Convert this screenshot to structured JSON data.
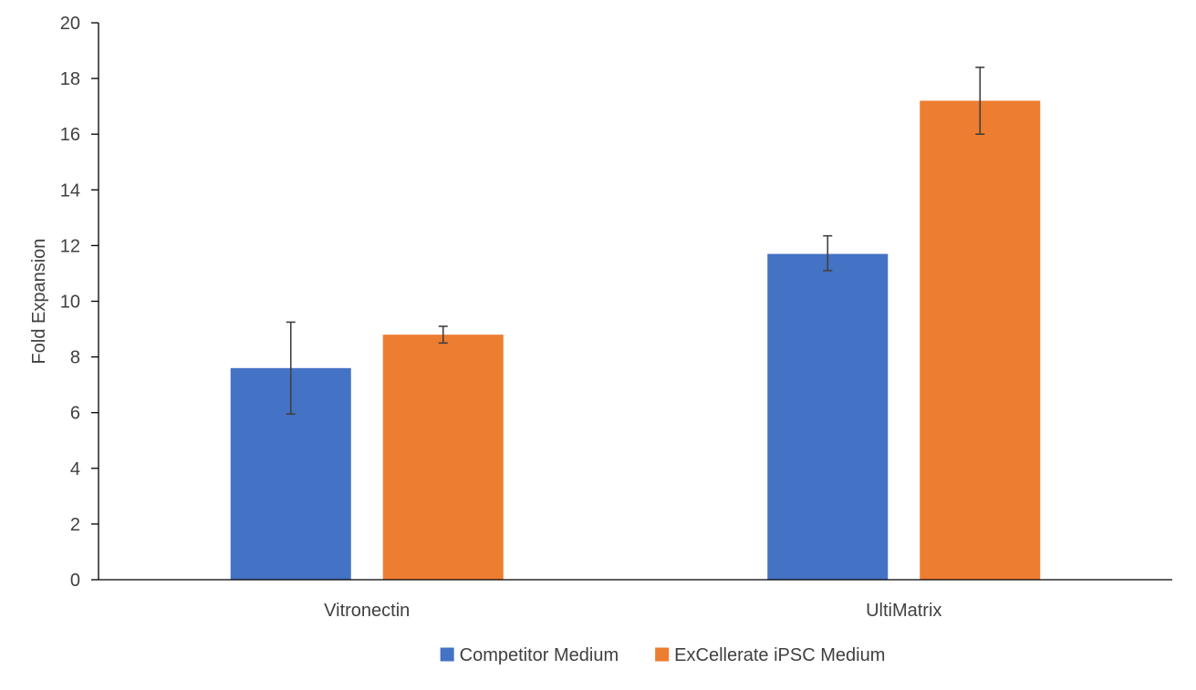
{
  "chart_data": {
    "type": "bar",
    "title": "",
    "xlabel": "",
    "ylabel": "Fold Expansion",
    "categories": [
      "Vitronectin",
      "UltiMatrix"
    ],
    "ylim": [
      0,
      20
    ],
    "yticks": [
      0,
      2,
      4,
      6,
      8,
      10,
      12,
      14,
      16,
      18,
      20
    ],
    "grid": false,
    "legend_position": "bottom",
    "series": [
      {
        "name": "Competitor Medium",
        "color": "#4472C4",
        "values": [
          7.6,
          11.7
        ],
        "error_low": [
          5.95,
          11.1
        ],
        "error_high": [
          9.25,
          12.35
        ]
      },
      {
        "name": "ExCellerate iPSC Medium",
        "color": "#ED7D31",
        "values": [
          8.8,
          17.2
        ],
        "error_low": [
          8.5,
          16.0
        ],
        "error_high": [
          9.1,
          18.4
        ]
      }
    ]
  }
}
